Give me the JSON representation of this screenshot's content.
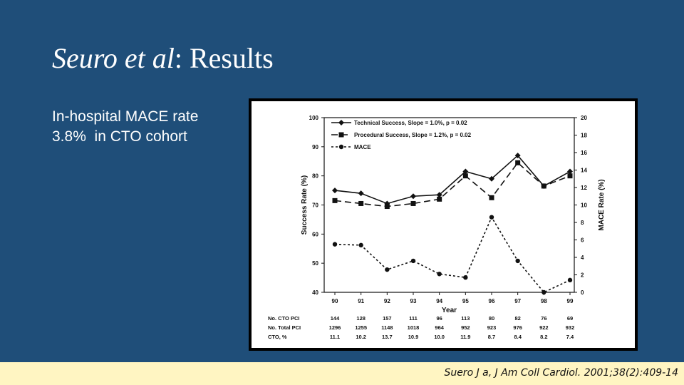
{
  "slide": {
    "title_italic": "Seuro et al",
    "title_rest": ": Results",
    "bullet_line1": "In-hospital MACE rate",
    "bullet_line2": "3.8%  in CTO cohort",
    "citation": "Suero J a, J Am Coll Cardiol. 2001;38(2):409-14"
  },
  "colors": {
    "background": "#1f4e79",
    "footer": "#fff5c2",
    "text": "#ffffff"
  },
  "chart_data": {
    "type": "line",
    "categories": [
      "90",
      "91",
      "92",
      "93",
      "94",
      "95",
      "96",
      "97",
      "98",
      "99"
    ],
    "xlabel": "Year",
    "ylabel": "Success Rate (%)",
    "ylabel_right": "MACE Rate (%)",
    "ylim": [
      40,
      100
    ],
    "ylim_right": [
      0,
      20
    ],
    "yticks": [
      40,
      50,
      60,
      70,
      80,
      90,
      100
    ],
    "yticks_right": [
      0,
      2,
      4,
      6,
      8,
      10,
      12,
      14,
      16,
      18,
      20
    ],
    "legend_position": "top-left",
    "series": [
      {
        "name": "Technical Success, Slope = 1.0%, p = 0.02",
        "axis": "left",
        "marker": "diamond",
        "dash": "solid",
        "values": [
          75,
          74,
          70.5,
          73,
          73.5,
          81.5,
          79,
          87,
          76.5,
          81.5
        ]
      },
      {
        "name": "Procedural Success, Slope = 1.2%, p = 0.02",
        "axis": "left",
        "marker": "square",
        "dash": "dashed",
        "values": [
          71.5,
          70.5,
          69.5,
          70.5,
          72,
          80,
          72.5,
          84.5,
          76.5,
          80
        ]
      },
      {
        "name": "MACE",
        "axis": "right",
        "marker": "circle",
        "dash": "dotted",
        "values": [
          5.5,
          5.4,
          2.6,
          3.6,
          2.1,
          1.7,
          8.6,
          3.6,
          0,
          1.4
        ]
      }
    ],
    "table": {
      "row_labels": [
        "No. CTO PCI",
        "No. Total PCI",
        "CTO, %"
      ],
      "rows": [
        [
          "144",
          "128",
          "157",
          "111",
          "96",
          "113",
          "80",
          "82",
          "76",
          "69"
        ],
        [
          "1296",
          "1255",
          "1148",
          "1018",
          "964",
          "952",
          "923",
          "976",
          "922",
          "932"
        ],
        [
          "11.1",
          "10.2",
          "13.7",
          "10.9",
          "10.0",
          "11.9",
          "8.7",
          "8.4",
          "8.2",
          "7.4"
        ]
      ]
    }
  }
}
